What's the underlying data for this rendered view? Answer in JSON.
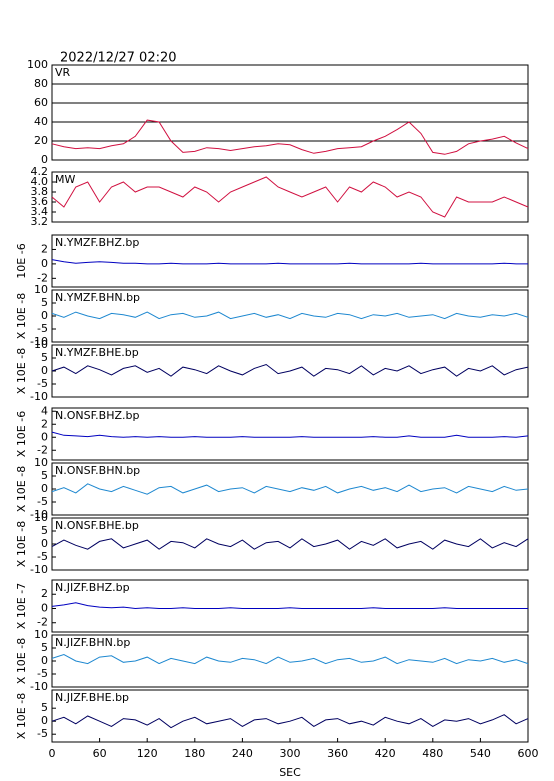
{
  "title": "2022/12/27  02:20",
  "chart_data": [
    {
      "type": "line",
      "title": "VR",
      "color": "#d01040",
      "grid": true,
      "xlim": [
        0,
        600
      ],
      "ylim": [
        0,
        100
      ],
      "yticks": [
        100,
        80,
        60,
        40,
        20,
        0
      ],
      "x": [
        0,
        15,
        30,
        45,
        60,
        75,
        90,
        105,
        120,
        135,
        150,
        165,
        180,
        195,
        210,
        225,
        240,
        255,
        270,
        285,
        300,
        315,
        330,
        345,
        360,
        375,
        390,
        405,
        420,
        435,
        450,
        465,
        480,
        495,
        510,
        525,
        540,
        555,
        570,
        585,
        600
      ],
      "values": [
        17,
        14,
        12,
        13,
        12,
        15,
        17,
        25,
        42,
        40,
        20,
        8,
        9,
        13,
        12,
        10,
        12,
        14,
        15,
        17,
        16,
        11,
        7,
        9,
        12,
        13,
        14,
        20,
        25,
        32,
        40,
        28,
        8,
        6,
        9,
        17,
        20,
        22,
        25,
        18,
        12
      ]
    },
    {
      "type": "line",
      "title": "MW",
      "color": "#d01040",
      "grid": false,
      "xlim": [
        0,
        600
      ],
      "ylim": [
        3.2,
        4.2
      ],
      "yticks": [
        4.2,
        {
          "value": 4,
          "label": "4.0"
        },
        3.8,
        3.6,
        3.4,
        3.2
      ],
      "x": [
        0,
        15,
        30,
        45,
        60,
        75,
        90,
        105,
        120,
        135,
        150,
        165,
        180,
        195,
        210,
        225,
        240,
        255,
        270,
        285,
        300,
        315,
        330,
        345,
        360,
        375,
        390,
        405,
        420,
        435,
        450,
        465,
        480,
        495,
        510,
        525,
        540,
        555,
        570,
        585,
        600
      ],
      "values": [
        3.7,
        3.5,
        3.9,
        4.0,
        3.6,
        3.9,
        4.0,
        3.8,
        3.9,
        3.9,
        3.8,
        3.7,
        3.9,
        3.8,
        3.6,
        3.8,
        3.9,
        4.0,
        4.1,
        3.9,
        3.8,
        3.7,
        3.8,
        3.9,
        3.6,
        3.9,
        3.8,
        4.0,
        3.9,
        3.7,
        3.8,
        3.7,
        3.4,
        3.3,
        3.7,
        3.6,
        3.6,
        3.6,
        3.7,
        3.6,
        3.5
      ]
    },
    {
      "type": "line",
      "title": "N.YMZF.BHZ.bp",
      "ylabel": "10E -6",
      "color": "#0000c0",
      "grid": false,
      "xlim": [
        0,
        600
      ],
      "ylim": [
        -3.2,
        4
      ],
      "yticks": [
        2,
        0,
        -2
      ],
      "x": [
        0,
        15,
        30,
        45,
        60,
        75,
        90,
        105,
        120,
        135,
        150,
        165,
        180,
        195,
        210,
        225,
        240,
        255,
        270,
        285,
        300,
        315,
        330,
        345,
        360,
        375,
        390,
        405,
        420,
        435,
        450,
        465,
        480,
        495,
        510,
        525,
        540,
        555,
        570,
        585,
        600
      ],
      "values": [
        0.6,
        0.3,
        0.1,
        0.2,
        0.3,
        0.2,
        0.1,
        0.1,
        0,
        0,
        0.1,
        0,
        0,
        0,
        0.1,
        0,
        0,
        0,
        0,
        0.1,
        0,
        0,
        0,
        0,
        0,
        0.1,
        0,
        0,
        0,
        0,
        0,
        0.1,
        0,
        0,
        0,
        0,
        0,
        0,
        0.1,
        0,
        0
      ]
    },
    {
      "type": "line",
      "title": "N.YMZF.BHN.bp",
      "ylabel": "X 10E -8",
      "color": "#1e88d0",
      "grid": false,
      "xlim": [
        0,
        600
      ],
      "ylim": [
        -10,
        10
      ],
      "yticks": [
        10,
        5,
        0,
        -5,
        -10
      ],
      "x": [
        0,
        15,
        30,
        45,
        60,
        75,
        90,
        105,
        120,
        135,
        150,
        165,
        180,
        195,
        210,
        225,
        240,
        255,
        270,
        285,
        300,
        315,
        330,
        345,
        360,
        375,
        390,
        405,
        420,
        435,
        450,
        465,
        480,
        495,
        510,
        525,
        540,
        555,
        570,
        585,
        600
      ],
      "values": [
        1,
        -0.5,
        1.5,
        0,
        -1,
        1,
        0.5,
        -0.5,
        1.5,
        -1,
        0.5,
        1,
        -0.5,
        0,
        1.5,
        -1,
        0,
        1,
        -0.5,
        0.5,
        -1,
        1,
        0,
        -0.5,
        1,
        0.5,
        -1,
        0.5,
        0,
        1,
        -0.5,
        0,
        0.5,
        -1,
        1,
        0,
        -0.5,
        0.5,
        0,
        1,
        -0.5
      ]
    },
    {
      "type": "line",
      "title": "N.YMZF.BHE.bp",
      "ylabel": "X 10E -8",
      "color": "#000060",
      "grid": false,
      "xlim": [
        0,
        600
      ],
      "ylim": [
        -10,
        10
      ],
      "yticks": [
        10,
        5,
        0,
        -5,
        -10
      ],
      "x": [
        0,
        15,
        30,
        45,
        60,
        75,
        90,
        105,
        120,
        135,
        150,
        165,
        180,
        195,
        210,
        225,
        240,
        255,
        270,
        285,
        300,
        315,
        330,
        345,
        360,
        375,
        390,
        405,
        420,
        435,
        450,
        465,
        480,
        495,
        510,
        525,
        540,
        555,
        570,
        585,
        600
      ],
      "values": [
        0,
        1.5,
        -1,
        2,
        0.5,
        -1.5,
        1,
        2,
        -0.5,
        1,
        -2,
        1.5,
        0.5,
        -1,
        2,
        0,
        -1.5,
        1,
        2.5,
        -1,
        0,
        1.5,
        -2,
        1,
        0.5,
        -1,
        2,
        -1.5,
        1,
        0,
        2,
        -1,
        0.5,
        1.5,
        -2,
        1,
        0,
        2,
        -1.5,
        0.5,
        1.5
      ]
    },
    {
      "type": "line",
      "title": "N.ONSF.BHZ.bp",
      "ylabel": "X 10E -6",
      "color": "#0000c0",
      "grid": false,
      "xlim": [
        0,
        600
      ],
      "ylim": [
        -3.5,
        4.5
      ],
      "yticks": [
        4,
        2,
        0,
        -2
      ],
      "x": [
        0,
        15,
        30,
        45,
        60,
        75,
        90,
        105,
        120,
        135,
        150,
        165,
        180,
        195,
        210,
        225,
        240,
        255,
        270,
        285,
        300,
        315,
        330,
        345,
        360,
        375,
        390,
        405,
        420,
        435,
        450,
        465,
        480,
        495,
        510,
        525,
        540,
        555,
        570,
        585,
        600
      ],
      "values": [
        0.8,
        0.3,
        0.2,
        0.1,
        0.3,
        0.1,
        0,
        0.1,
        0,
        0.1,
        0,
        0,
        0.1,
        0,
        0,
        0,
        0.1,
        0,
        0,
        0,
        0,
        0.1,
        0,
        0,
        0,
        0,
        0,
        0.1,
        0,
        0,
        0.2,
        0,
        0,
        0,
        0.3,
        0,
        0,
        0,
        0.1,
        0,
        0.2
      ]
    },
    {
      "type": "line",
      "title": "N.ONSF.BHN.bp",
      "ylabel": "X 10E -8",
      "color": "#1e88d0",
      "grid": false,
      "xlim": [
        0,
        600
      ],
      "ylim": [
        -10,
        10
      ],
      "yticks": [
        10,
        5,
        0,
        -5,
        -10
      ],
      "x": [
        0,
        15,
        30,
        45,
        60,
        75,
        90,
        105,
        120,
        135,
        150,
        165,
        180,
        195,
        210,
        225,
        240,
        255,
        270,
        285,
        300,
        315,
        330,
        345,
        360,
        375,
        390,
        405,
        420,
        435,
        450,
        465,
        480,
        495,
        510,
        525,
        540,
        555,
        570,
        585,
        600
      ],
      "values": [
        -1,
        0.5,
        -1.5,
        2,
        0,
        -1,
        1,
        -0.5,
        -2,
        0.5,
        1,
        -1.5,
        0,
        1.5,
        -1,
        0,
        0.5,
        -1.5,
        1,
        0,
        -1,
        0.5,
        -0.5,
        1,
        -1.5,
        0,
        1,
        -0.5,
        0.5,
        -1,
        1.5,
        -1,
        0,
        0.5,
        -1.5,
        1,
        0,
        -1,
        1,
        -0.5,
        0
      ]
    },
    {
      "type": "line",
      "title": "N.ONSF.BHE.bp",
      "ylabel": "X 10E -8",
      "color": "#000060",
      "grid": false,
      "xlim": [
        0,
        600
      ],
      "ylim": [
        -10,
        10
      ],
      "yticks": [
        10,
        5,
        0,
        -5,
        -10
      ],
      "x": [
        0,
        15,
        30,
        45,
        60,
        75,
        90,
        105,
        120,
        135,
        150,
        165,
        180,
        195,
        210,
        225,
        240,
        255,
        270,
        285,
        300,
        315,
        330,
        345,
        360,
        375,
        390,
        405,
        420,
        435,
        450,
        465,
        480,
        495,
        510,
        525,
        540,
        555,
        570,
        585,
        600
      ],
      "values": [
        -1,
        1.5,
        -0.5,
        -2,
        1,
        2,
        -1.5,
        0,
        1.5,
        -2,
        1,
        0.5,
        -1.5,
        2,
        0,
        -1,
        1.5,
        -2,
        0.5,
        1,
        -1.5,
        2,
        -1,
        0,
        1.5,
        -2,
        1,
        -0.5,
        2,
        -1.5,
        0,
        1,
        -2,
        1.5,
        0,
        -1,
        2,
        -1.5,
        0.5,
        -1,
        2
      ]
    },
    {
      "type": "line",
      "title": "N.JIZF.BHZ.bp",
      "ylabel": "X 10E -7",
      "color": "#0000c0",
      "grid": false,
      "xlim": [
        0,
        600
      ],
      "ylim": [
        -3.3,
        4
      ],
      "yticks": [
        2,
        0,
        -2
      ],
      "x": [
        0,
        15,
        30,
        45,
        60,
        75,
        90,
        105,
        120,
        135,
        150,
        165,
        180,
        195,
        210,
        225,
        240,
        255,
        270,
        285,
        300,
        315,
        330,
        345,
        360,
        375,
        390,
        405,
        420,
        435,
        450,
        465,
        480,
        495,
        510,
        525,
        540,
        555,
        570,
        585,
        600
      ],
      "values": [
        0.3,
        0.5,
        0.8,
        0.4,
        0.2,
        0.1,
        0.2,
        0,
        0.1,
        0,
        0,
        0.1,
        0,
        0,
        0,
        0.1,
        0,
        0,
        0,
        0,
        0.1,
        0,
        0,
        0,
        0,
        0,
        0,
        0.1,
        0,
        0,
        0,
        0,
        0,
        0.1,
        0,
        0,
        0,
        0,
        0,
        0,
        0
      ]
    },
    {
      "type": "line",
      "title": "N.JIZF.BHN.bp",
      "ylabel": "X 10E -8",
      "color": "#1e88d0",
      "grid": false,
      "xlim": [
        0,
        600
      ],
      "ylim": [
        -10,
        10
      ],
      "yticks": [
        10,
        5,
        0,
        -5,
        -10
      ],
      "x": [
        0,
        15,
        30,
        45,
        60,
        75,
        90,
        105,
        120,
        135,
        150,
        165,
        180,
        195,
        210,
        225,
        240,
        255,
        270,
        285,
        300,
        315,
        330,
        345,
        360,
        375,
        390,
        405,
        420,
        435,
        450,
        465,
        480,
        495,
        510,
        525,
        540,
        555,
        570,
        585,
        600
      ],
      "values": [
        1,
        2.5,
        0,
        -1,
        1.5,
        2,
        -0.5,
        0,
        1.5,
        -1,
        1,
        0,
        -1,
        1.5,
        0,
        -0.5,
        1,
        0.5,
        -1,
        1.5,
        -0.5,
        0,
        1,
        -1,
        0.5,
        1,
        -0.5,
        0,
        1.5,
        -1,
        0.5,
        0,
        -0.5,
        1,
        -1,
        0.5,
        0,
        1,
        -0.5,
        0.5,
        -1
      ]
    },
    {
      "type": "line",
      "title": "N.JIZF.BHE.bp",
      "ylabel": "X 10E -8",
      "color": "#000060",
      "grid": false,
      "xlim": [
        0,
        600
      ],
      "ylim": [
        -8,
        12
      ],
      "yticks": [
        5,
        0,
        -5
      ],
      "x": [
        0,
        15,
        30,
        45,
        60,
        75,
        90,
        105,
        120,
        135,
        150,
        165,
        180,
        195,
        210,
        225,
        240,
        255,
        270,
        285,
        300,
        315,
        330,
        345,
        360,
        375,
        390,
        405,
        420,
        435,
        450,
        465,
        480,
        495,
        510,
        525,
        540,
        555,
        570,
        585,
        600
      ],
      "values": [
        0,
        1.5,
        -1,
        2,
        0,
        -2,
        1,
        0.5,
        -1.5,
        1,
        -2.5,
        0,
        1.5,
        -1,
        0,
        1,
        -2,
        0.5,
        1,
        -1,
        0,
        1.5,
        -2,
        0.5,
        1,
        -1,
        0,
        -1.5,
        1.5,
        0,
        -1,
        1,
        -2,
        0.5,
        0,
        1,
        -1,
        0.5,
        2.5,
        -1,
        1
      ],
      "xticks": [
        0,
        60,
        120,
        180,
        240,
        300,
        360,
        420,
        480,
        540,
        600
      ],
      "xlabel": "SEC"
    }
  ]
}
